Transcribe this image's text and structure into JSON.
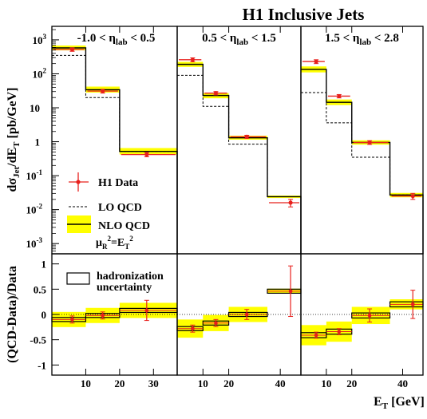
{
  "chart_data": {
    "type": "step-histogram",
    "title": "H1 Inclusive Jets",
    "xlabel": "E",
    "xlabel_sub": "T",
    "xlabel_unit": "[GeV]",
    "ylabel_top": {
      "main": "dσ",
      "sub1": "Jet",
      "mid": "/dE",
      "sub2": "T",
      "unit": " [pb/GeV]"
    },
    "ylabel_bottom": "(QCD-Data)/Data",
    "yscale_top": "log",
    "ylim_top": [
      0.0005,
      2500
    ],
    "ylim_bottom": [
      -1.2,
      1.2
    ],
    "yticks_top": [
      {
        "value": 1000,
        "base": "10",
        "exp": "3"
      },
      {
        "value": 100,
        "base": "10",
        "exp": "2"
      },
      {
        "value": 10,
        "base": "10",
        "exp": ""
      },
      {
        "value": 1,
        "base": "1",
        "exp": ""
      },
      {
        "value": 0.1,
        "base": "10",
        "exp": "-1"
      },
      {
        "value": 0.01,
        "base": "10",
        "exp": "-2"
      },
      {
        "value": 0.001,
        "base": "10",
        "exp": "-3"
      }
    ],
    "yticks_bottom": [
      "1",
      "0.5",
      "0",
      "-0.5",
      "-1"
    ],
    "legend": {
      "data": "H1 Data",
      "lo": "LO QCD",
      "nlo": "NLO QCD",
      "scale": {
        "mu": "μ",
        "mu_sub": "R",
        "mu_sup": "2",
        "eq": "=E",
        "e_sub": "T",
        "e_sup": "2"
      },
      "hadronization_1": "hadronization",
      "hadronization_2": "uncertainty"
    },
    "colors": {
      "data": "#e8201c",
      "band": "#ffff00",
      "nlo": "#000000",
      "lo": "#000000",
      "frame": "#000000"
    },
    "panels": [
      {
        "label": {
          "pre": "-1.0 < η",
          "sub": "lab",
          "post": " < 0.5"
        },
        "xlim": [
          0,
          37
        ],
        "xticks": [
          "10",
          "20",
          "30"
        ],
        "bins": [
          [
            0,
            10
          ],
          [
            10,
            20
          ],
          [
            20,
            37
          ]
        ],
        "data": [
          {
            "x": 6,
            "y": 520
          },
          {
            "x": 15,
            "y": 31
          },
          {
            "x": 28,
            "y": 0.42
          }
        ],
        "data_err_lo": [
          60,
          4,
          0.06
        ],
        "data_err_hi": [
          60,
          4,
          0.06
        ],
        "nlo": [
          580,
          34,
          0.52
        ],
        "nlo_band_lo": [
          490,
          28,
          0.42
        ],
        "nlo_band_hi": [
          680,
          42,
          0.65
        ],
        "lo": [
          350,
          20,
          0.52
        ],
        "ratio": [
          -0.1,
          -0.02,
          0.08
        ],
        "ratio_err": [
          0.07,
          0.07,
          0.2
        ],
        "ratio_band": [
          0.15,
          0.15,
          0.15
        ],
        "had": [
          0.04,
          0.04,
          0.04
        ]
      },
      {
        "label": {
          "pre": "0.5 < η",
          "sub": "lab",
          "post": " < 1.5"
        },
        "xlim": [
          0,
          48
        ],
        "xticks": [
          "10",
          "20",
          "40"
        ],
        "bins": [
          [
            0,
            10
          ],
          [
            10,
            20
          ],
          [
            20,
            35
          ],
          [
            35,
            48
          ]
        ],
        "data": [
          {
            "x": 6,
            "y": 260
          },
          {
            "x": 15,
            "y": 27
          },
          {
            "x": 27,
            "y": 1.4
          },
          {
            "x": 44,
            "y": 0.016
          }
        ],
        "data_err_lo": [
          35,
          3,
          0.15,
          0.004
        ],
        "data_err_hi": [
          35,
          3,
          0.15,
          0.004
        ],
        "nlo": [
          190,
          23,
          1.3,
          0.024
        ],
        "nlo_band_lo": [
          160,
          19,
          1.15,
          0.022
        ],
        "nlo_band_hi": [
          225,
          27,
          1.5,
          0.026
        ],
        "lo": [
          90,
          11,
          0.85,
          0.024
        ],
        "ratio": [
          -0.28,
          -0.17,
          0,
          0.46
        ],
        "ratio_err": [
          0.07,
          0.07,
          0.1,
          0.5
        ],
        "ratio_band": [
          0.18,
          0.16,
          0.15,
          0.05
        ],
        "had": [
          0.04,
          0.04,
          0.04,
          0.04
        ]
      },
      {
        "label": {
          "pre": "1.5 < η",
          "sub": "lab",
          "post": " < 2.8"
        },
        "xlim": [
          0,
          48
        ],
        "xticks": [
          "10",
          "20",
          "40"
        ],
        "bins": [
          [
            0,
            10
          ],
          [
            10,
            20
          ],
          [
            20,
            35
          ],
          [
            35,
            48
          ]
        ],
        "data": [
          {
            "x": 6,
            "y": 230
          },
          {
            "x": 15,
            "y": 22
          },
          {
            "x": 27,
            "y": 0.95
          },
          {
            "x": 44,
            "y": 0.025
          }
        ],
        "data_err_lo": [
          30,
          2.5,
          0.12,
          0.005
        ],
        "data_err_hi": [
          30,
          2.5,
          0.12,
          0.005
        ],
        "nlo": [
          135,
          14.5,
          0.95,
          0.027
        ],
        "nlo_band_lo": [
          110,
          12,
          0.82,
          0.023
        ],
        "nlo_band_hi": [
          165,
          17.5,
          1.1,
          0.031
        ],
        "lo": [
          28,
          3.6,
          0.35,
          0.027
        ],
        "ratio": [
          -0.41,
          -0.34,
          -0.02,
          0.2
        ],
        "ratio_err": [
          0.06,
          0.06,
          0.13,
          0.28
        ],
        "ratio_band": [
          0.2,
          0.2,
          0.17,
          0.1
        ],
        "had": [
          0.05,
          0.05,
          0.05,
          0.05
        ]
      }
    ]
  }
}
